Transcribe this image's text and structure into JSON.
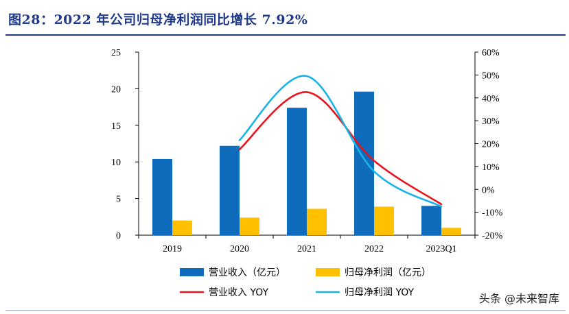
{
  "title": "图28：2022 年公司归母净利润同比增长 7.92%",
  "watermark": "头条 @未来智库",
  "chart_data": {
    "type": "bar",
    "categories": [
      "2019",
      "2020",
      "2021",
      "2022",
      "2023Q1"
    ],
    "series": [
      {
        "name": "营业收入（亿元）",
        "kind": "bar",
        "axis": "left",
        "color": "#0f6cbd",
        "values": [
          10.4,
          12.2,
          17.4,
          19.6,
          4.0
        ]
      },
      {
        "name": "归母净利润（亿元）",
        "kind": "bar",
        "axis": "left",
        "color": "#ffc000",
        "values": [
          2.0,
          2.4,
          3.6,
          3.9,
          1.0
        ]
      },
      {
        "name": "营业收入 YOY",
        "kind": "line",
        "axis": "right",
        "color": "#e8141c",
        "values": [
          null,
          17.5,
          42.5,
          12.5,
          -6.5
        ]
      },
      {
        "name": "归母净利润 YOY",
        "kind": "line",
        "axis": "right",
        "color": "#18b4e8",
        "values": [
          null,
          21.5,
          49.5,
          7.9,
          -7.5
        ]
      }
    ],
    "y_left": {
      "min": 0,
      "max": 25,
      "ticks": [
        "0",
        "5",
        "10",
        "15",
        "20",
        "25"
      ]
    },
    "y_right": {
      "min": -20,
      "max": 60,
      "ticks": [
        "-20%",
        "-10%",
        "0%",
        "10%",
        "20%",
        "30%",
        "40%",
        "50%",
        "60%"
      ]
    },
    "grid": false,
    "legend_position": "bottom"
  }
}
